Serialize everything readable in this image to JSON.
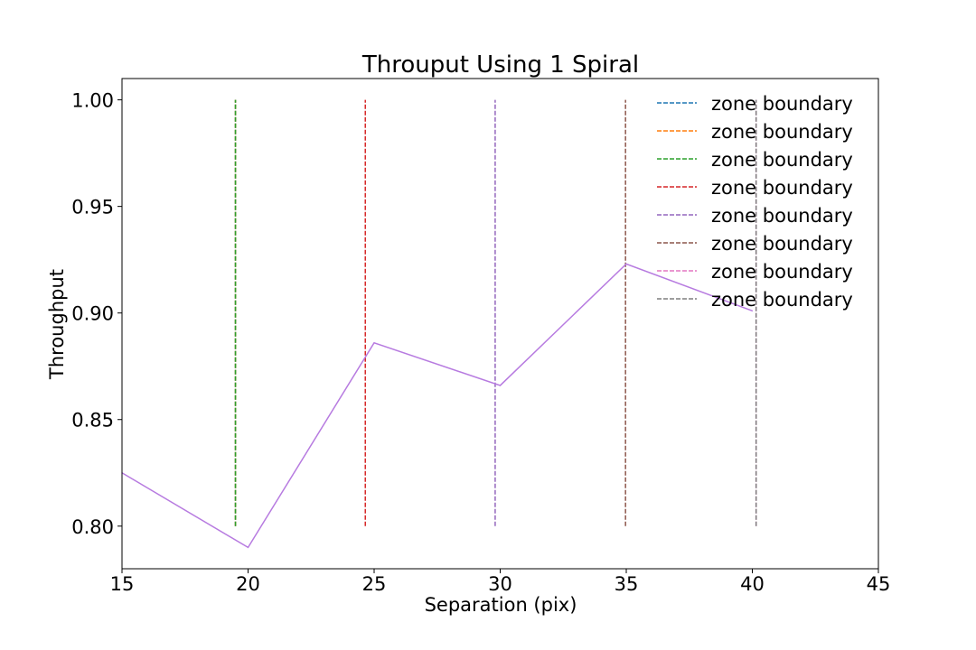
{
  "chart_data": {
    "type": "line",
    "title": "Throuput Using 1 Spiral",
    "xlabel": "Separation (pix)",
    "ylabel": "Throughput",
    "xlim": [
      15,
      45
    ],
    "ylim": [
      0.78,
      1.01
    ],
    "xticks": [
      15,
      20,
      25,
      30,
      35,
      40,
      45
    ],
    "yticks": [
      0.8,
      0.85,
      0.9,
      0.95,
      1.0
    ],
    "ytick_labels": [
      "0.80",
      "0.85",
      "0.90",
      "0.95",
      "1.00"
    ],
    "grid": false,
    "legend_position": "top-right",
    "zone_boundaries": [
      {
        "label": "zone boundary",
        "x": 19.5,
        "ymin": 0.8,
        "ymax": 1.0,
        "color": "#1f77b4"
      },
      {
        "label": "zone boundary",
        "x": 19.5,
        "ymin": 0.8,
        "ymax": 1.0,
        "color": "#ff7f0e"
      },
      {
        "label": "zone boundary",
        "x": 19.5,
        "ymin": 0.8,
        "ymax": 1.0,
        "color": "#2ca02c"
      },
      {
        "label": "zone boundary",
        "x": 24.65,
        "ymin": 0.8,
        "ymax": 1.0,
        "color": "#d62728"
      },
      {
        "label": "zone boundary",
        "x": 29.8,
        "ymin": 0.8,
        "ymax": 1.0,
        "color": "#9467bd"
      },
      {
        "label": "zone boundary",
        "x": 34.97,
        "ymin": 0.8,
        "ymax": 1.0,
        "color": "#8c564b"
      },
      {
        "label": "zone boundary",
        "x": 40.15,
        "ymin": 0.8,
        "ymax": 1.0,
        "color": "#e377c2"
      },
      {
        "label": "zone boundary",
        "x": 40.15,
        "ymin": 0.8,
        "ymax": 1.0,
        "color": "#7f7f7f"
      }
    ],
    "series": [
      {
        "color": "#b77be0",
        "x": [
          15,
          20,
          25,
          30,
          35,
          40
        ],
        "values": [
          0.825,
          0.79,
          0.886,
          0.866,
          0.923,
          0.901
        ]
      }
    ]
  }
}
